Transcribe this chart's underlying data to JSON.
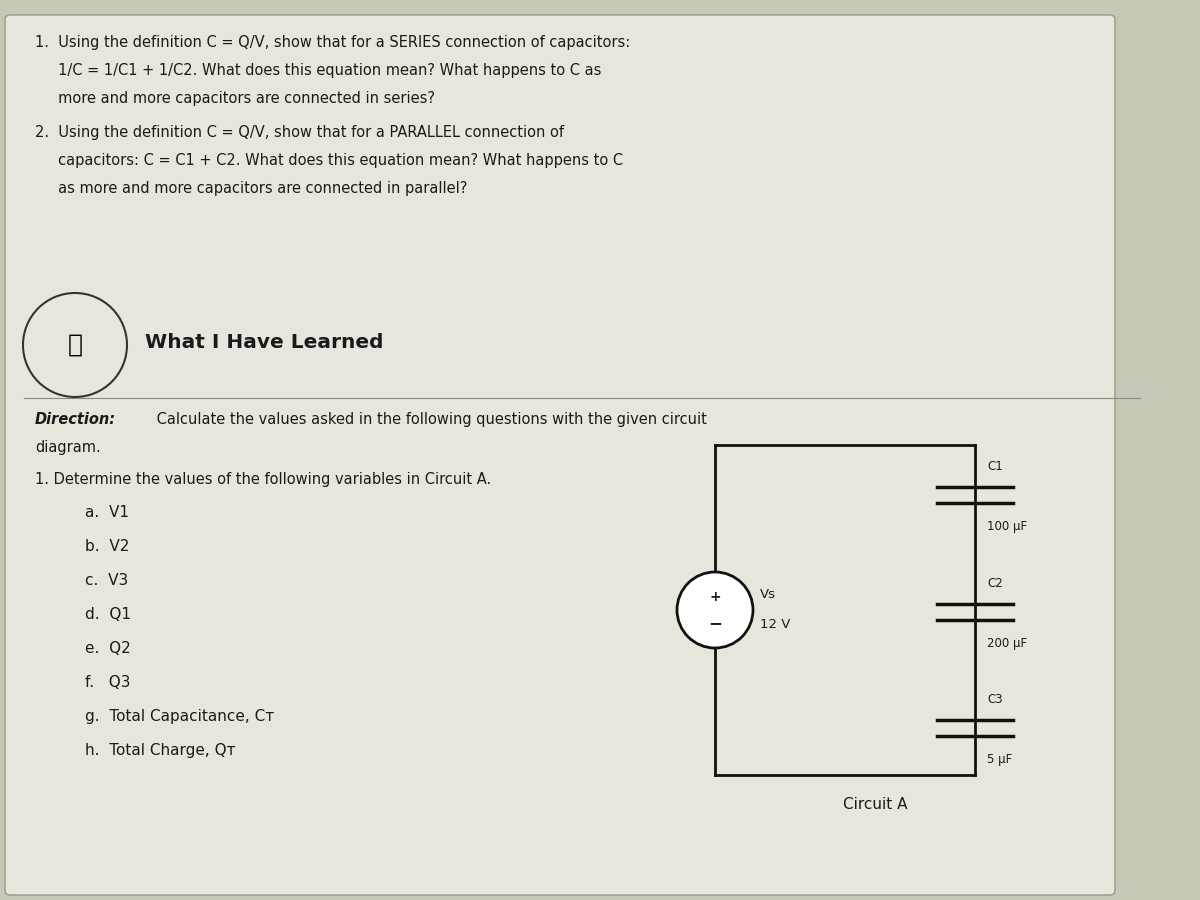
{
  "bg_color": "#c8c8b8",
  "paper_color": "#e8e6dc",
  "text_color": "#1a1a1a",
  "title1_line1": "1.  Using the definition C = Q/V, show that for a SERIES connection of capacitors:",
  "title1_line2": "     1/C = 1/C1 + 1/C2. What does this equation mean? What happens to C as",
  "title1_line3": "     more and more capacitors are connected in series?",
  "title2_line1": "2.  Using the definition C = Q/V, show that for a PARALLEL connection of",
  "title2_line2": "     capacitors: C = C1 + C2. What does this equation mean? What happens to C",
  "title2_line3": "     as more and more capacitors are connected in parallel?",
  "section_title": "What I Have Learned",
  "direction_bold": "Direction:",
  "direction_text": " Calculate the values asked in the following questions with the given circuit",
  "direction_text2": "diagram.",
  "question1": "1. Determine the values of the following variables in Circuit A.",
  "items": [
    "a.  V1",
    "b.  V2",
    "c.  V3",
    "d.  Q1",
    "e.  Q2",
    "f.   Q3",
    "g.  Total Capacitance, Cᴛ",
    "h.  Total Charge, Qᴛ"
  ],
  "circuit_label": "Circuit A",
  "vs_label": "Vs",
  "vs_value": "12 V",
  "c1_label": "C1",
  "c1_value": "100 μF",
  "c2_label": "C2",
  "c2_value": "200 μF",
  "c3_label": "C3",
  "c3_value": "5 μF"
}
